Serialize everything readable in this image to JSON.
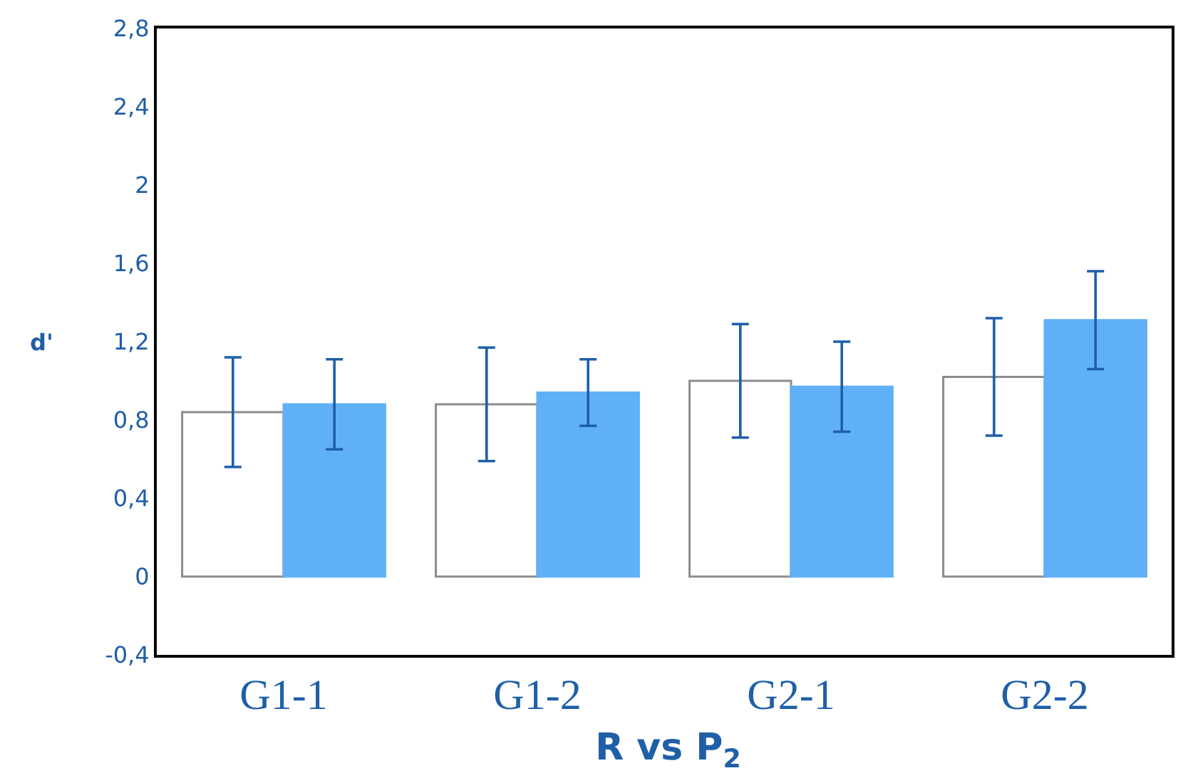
{
  "chart_data": {
    "type": "bar",
    "title": "R vs P$_{2}$",
    "ylabel": "d'",
    "categories": [
      "G1-1",
      "G1-2",
      "G2-1",
      "G2-2"
    ],
    "series": [
      {
        "color": "#ffffff",
        "values": [
          0.84,
          0.88,
          1.0,
          1.02
        ],
        "errors": [
          0.28,
          0.29,
          0.29,
          0.3
        ]
      },
      {
        "color": "#5fb0f7",
        "values": [
          0.88,
          0.94,
          0.97,
          1.31
        ],
        "errors": [
          0.23,
          0.17,
          0.23,
          0.25
        ]
      }
    ],
    "ylim": [
      -0.4,
      2.8
    ],
    "yticks": [
      {
        "value": -0.4,
        "label": "-0,4"
      },
      0,
      {
        "value": 0.4,
        "label": "0,4"
      },
      {
        "value": 0.8,
        "label": "0,8"
      },
      {
        "value": 1.2,
        "label": "1,2"
      },
      {
        "value": 1.6,
        "label": "1,6"
      },
      2,
      {
        "value": 2.4,
        "label": "2,4"
      },
      {
        "value": 2.8,
        "label": "2,8"
      }
    ],
    "data_labels": false
  }
}
